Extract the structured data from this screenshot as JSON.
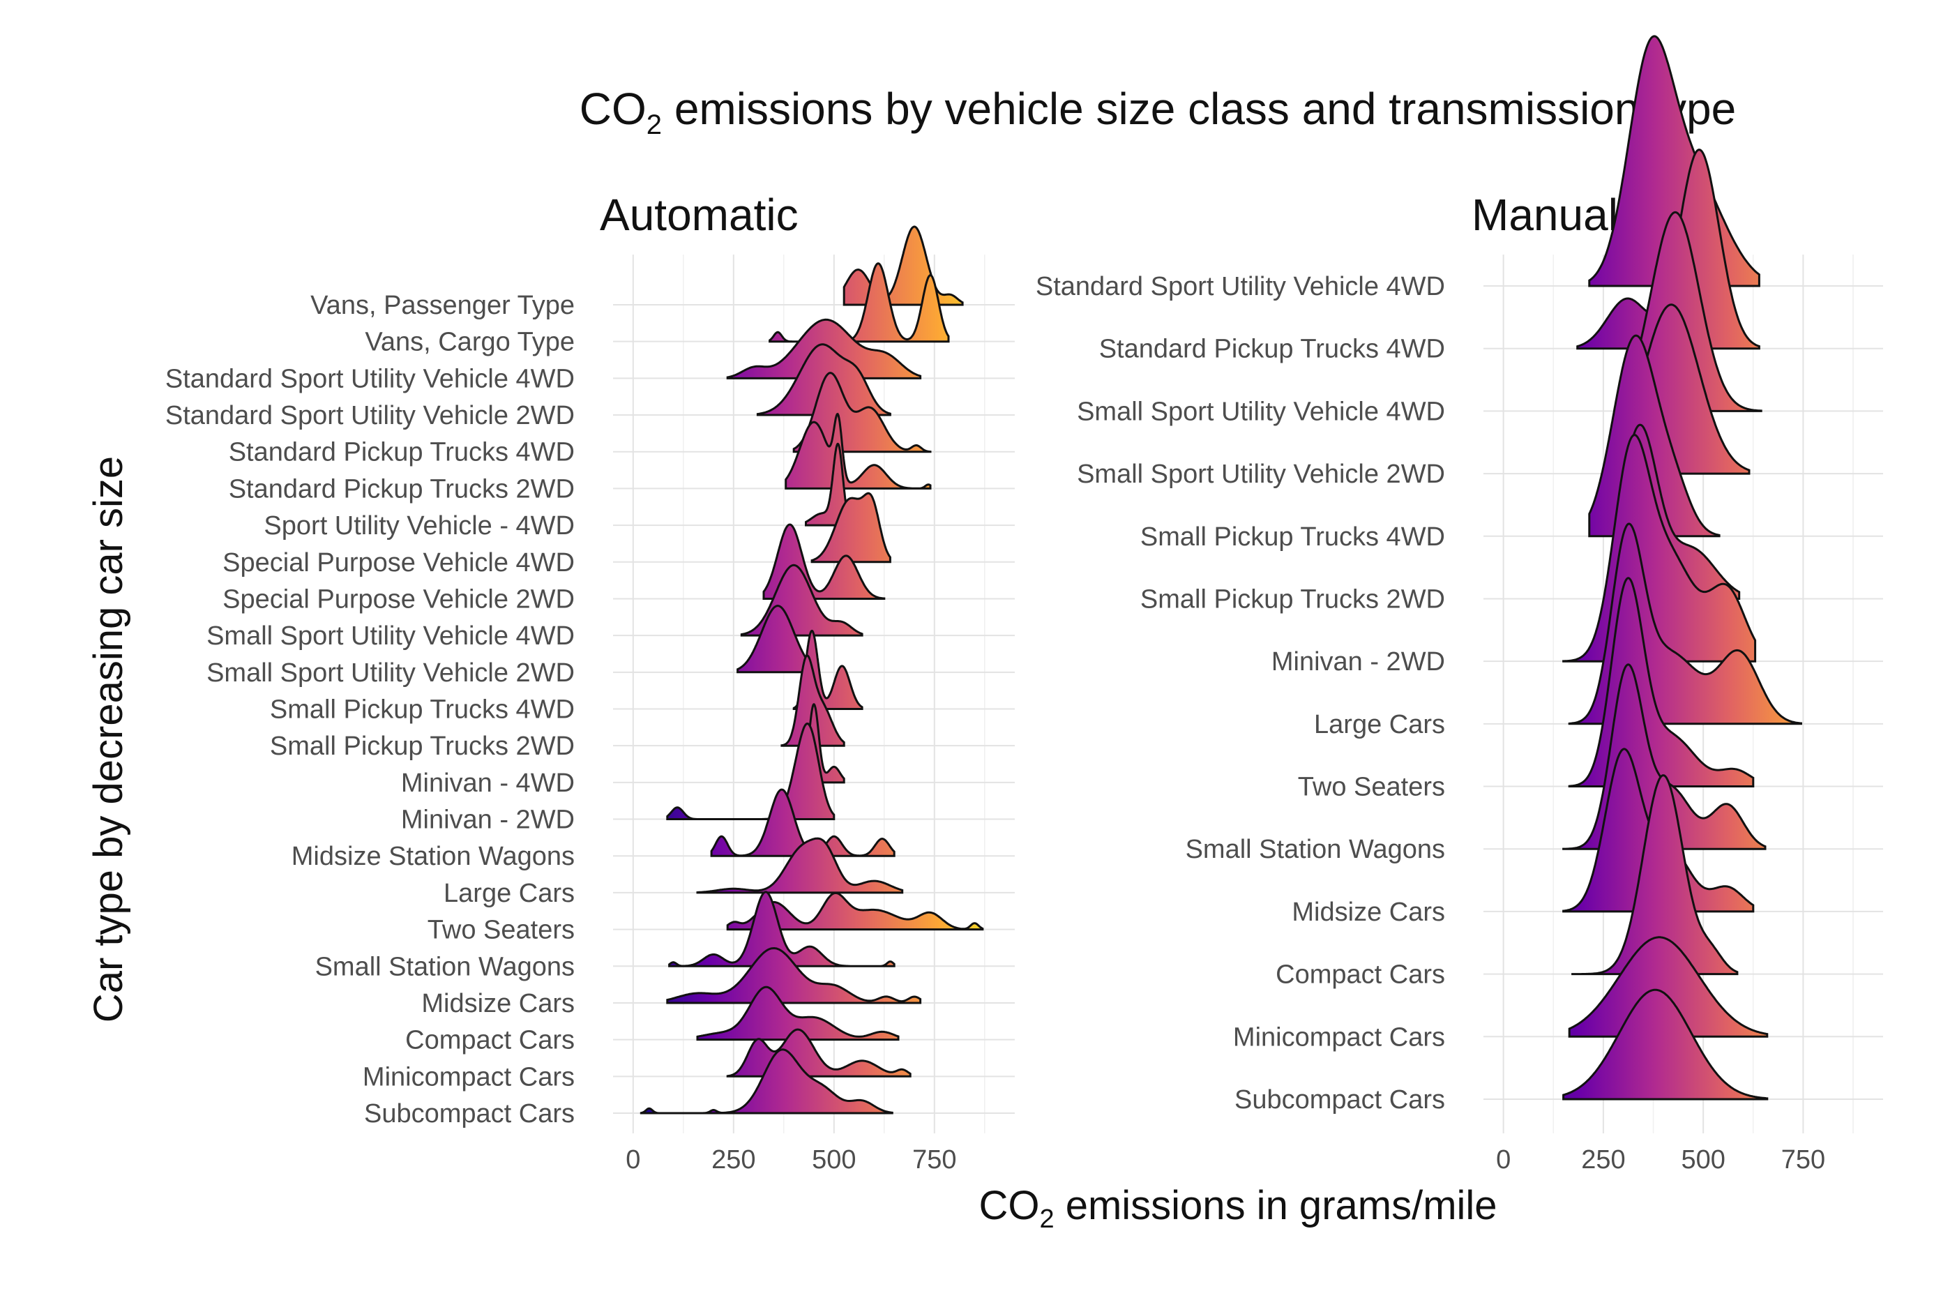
{
  "chart_data": {
    "type": "ridgeline",
    "title": {
      "prefix": "CO",
      "sub": "2",
      "suffix": " emissions by vehicle size class and transmission type"
    },
    "xlabel": {
      "prefix": "CO",
      "sub": "2",
      "suffix": " emissions in grams/mile"
    },
    "ylabel": "Car type by decreasing car size",
    "xlim": [
      -50,
      950
    ],
    "xticks": [
      0,
      250,
      500,
      750
    ],
    "color_scale": {
      "name": "plasma",
      "stops": [
        "#0d0887",
        "#6a00a8",
        "#b12a90",
        "#e16462",
        "#fca636",
        "#f0f921"
      ],
      "range": [
        0,
        950
      ]
    },
    "panels": [
      {
        "name": "Automatic",
        "categories": [
          {
            "label": "Vans, Passenger Type",
            "comps": [
              [
                560,
                30,
                0.45
              ],
              [
                700,
                30,
                1.0
              ],
              [
                790,
                18,
                0.12
              ]
            ],
            "range": [
              525,
              820
            ]
          },
          {
            "label": "Vans, Cargo Type",
            "comps": [
              [
                360,
                10,
                0.12
              ],
              [
                610,
                25,
                1.0
              ],
              [
                740,
                20,
                0.85
              ]
            ],
            "range": [
              340,
              785
            ]
          },
          {
            "label": "Standard Sport Utility Vehicle 4WD",
            "comps": [
              [
                300,
                30,
                0.12
              ],
              [
                480,
                70,
                0.75
              ],
              [
                630,
                40,
                0.25
              ]
            ],
            "range": [
              235,
              715
            ]
          },
          {
            "label": "Standard Sport Utility Vehicle 2WD",
            "comps": [
              [
                470,
                55,
                0.9
              ],
              [
                560,
                30,
                0.35
              ]
            ],
            "range": [
              310,
              640
            ]
          },
          {
            "label": "Standard Pickup Trucks 4WD",
            "comps": [
              [
                490,
                35,
                1.0
              ],
              [
                590,
                35,
                0.55
              ],
              [
                705,
                12,
                0.08
              ]
            ],
            "range": [
              400,
              740
            ]
          },
          {
            "label": "Standard Pickup Trucks 2WD",
            "comps": [
              [
                450,
                35,
                0.85
              ],
              [
                510,
                10,
                0.75
              ],
              [
                600,
                30,
                0.3
              ],
              [
                735,
                8,
                0.05
              ]
            ],
            "range": [
              380,
              740
            ]
          },
          {
            "label": "Sport Utility Vehicle - 4WD",
            "comps": [
              [
                510,
                12,
                1.0
              ],
              [
                470,
                25,
                0.15
              ]
            ],
            "range": [
              430,
              560
            ]
          },
          {
            "label": "Special Purpose Vehicle 4WD",
            "comps": [
              [
                540,
                35,
                0.8
              ],
              [
                595,
                20,
                0.6
              ]
            ],
            "range": [
              445,
              640
            ]
          },
          {
            "label": "Special Purpose Vehicle 2WD",
            "comps": [
              [
                390,
                30,
                0.95
              ],
              [
                530,
                30,
                0.55
              ]
            ],
            "range": [
              325,
              625
            ]
          },
          {
            "label": "Small Sport Utility Vehicle 4WD",
            "comps": [
              [
                400,
                45,
                0.9
              ],
              [
                520,
                25,
                0.15
              ]
            ],
            "range": [
              270,
              570
            ]
          },
          {
            "label": "Small Sport Utility Vehicle 2WD",
            "comps": [
              [
                360,
                40,
                0.85
              ]
            ],
            "range": [
              260,
              460
            ]
          },
          {
            "label": "Small Pickup Trucks 4WD",
            "comps": [
              [
                445,
                15,
                1.0
              ],
              [
                520,
                20,
                0.55
              ]
            ],
            "range": [
              400,
              570
            ]
          },
          {
            "label": "Small Pickup Trucks 2WD",
            "comps": [
              [
                430,
                18,
                1.0
              ],
              [
                470,
                25,
                0.5
              ]
            ],
            "range": [
              370,
              525
            ]
          },
          {
            "label": "Minivan - 4WD",
            "comps": [
              [
                450,
                12,
                1.0
              ],
              [
                500,
                15,
                0.2
              ]
            ],
            "range": [
              410,
              525
            ]
          },
          {
            "label": "Minivan - 2WD",
            "comps": [
              [
                110,
                15,
                0.15
              ],
              [
                440,
                25,
                1.0
              ],
              [
                410,
                25,
                0.4
              ]
            ],
            "range": [
              85,
              500
            ]
          },
          {
            "label": "Midsize Station Wagons",
            "comps": [
              [
                220,
                15,
                0.25
              ],
              [
                370,
                30,
                0.85
              ],
              [
                500,
                20,
                0.25
              ],
              [
                620,
                18,
                0.22
              ]
            ],
            "range": [
              195,
              650
            ]
          },
          {
            "label": "Large Cars",
            "comps": [
              [
                250,
                40,
                0.05
              ],
              [
                420,
                40,
                0.55
              ],
              [
                480,
                30,
                0.45
              ],
              [
                600,
                40,
                0.15
              ]
            ],
            "range": [
              160,
              670
            ]
          },
          {
            "label": "Two Seaters",
            "comps": [
              [
                250,
                15,
                0.08
              ],
              [
                350,
                40,
                0.35
              ],
              [
                500,
                30,
                0.4
              ],
              [
                600,
                60,
                0.25
              ],
              [
                740,
                30,
                0.2
              ],
              [
                850,
                10,
                0.08
              ]
            ],
            "range": [
              235,
              870
            ]
          },
          {
            "label": "Small Station Wagons",
            "comps": [
              [
                100,
                8,
                0.05
              ],
              [
                200,
                25,
                0.15
              ],
              [
                330,
                30,
                0.95
              ],
              [
                440,
                30,
                0.25
              ],
              [
                640,
                8,
                0.06
              ]
            ],
            "range": [
              90,
              650
            ]
          },
          {
            "label": "Midsize Cars",
            "comps": [
              [
                160,
                50,
                0.12
              ],
              [
                350,
                60,
                0.7
              ],
              [
                500,
                40,
                0.2
              ],
              [
                630,
                20,
                0.08
              ],
              [
                700,
                15,
                0.08
              ]
            ],
            "range": [
              85,
              715
            ]
          },
          {
            "label": "Compact Cars",
            "comps": [
              [
                220,
                50,
                0.08
              ],
              [
                330,
                40,
                0.65
              ],
              [
                450,
                50,
                0.28
              ],
              [
                620,
                30,
                0.1
              ]
            ],
            "range": [
              160,
              660
            ]
          },
          {
            "label": "Minicompact Cars",
            "comps": [
              [
                310,
                25,
                0.45
              ],
              [
                410,
                40,
                0.6
              ],
              [
                570,
                40,
                0.2
              ],
              [
                670,
                15,
                0.08
              ]
            ],
            "range": [
              235,
              690
            ]
          },
          {
            "label": "Subcompact Cars",
            "comps": [
              [
                40,
                8,
                0.06
              ],
              [
                200,
                8,
                0.04
              ],
              [
                370,
                45,
                0.8
              ],
              [
                470,
                40,
                0.3
              ],
              [
                570,
                30,
                0.15
              ]
            ],
            "range": [
              20,
              645
            ]
          }
        ]
      },
      {
        "name": "Manual",
        "categories": [
          {
            "label": "Standard Sport Utility Vehicle 4WD",
            "comps": [
              [
                365,
                55,
                1.0
              ],
              [
                470,
                80,
                0.55
              ]
            ],
            "range": [
              215,
              640
            ]
          },
          {
            "label": "Standard Pickup Trucks 4WD",
            "comps": [
              [
                490,
                50,
                1.0
              ],
              [
                310,
                50,
                0.25
              ]
            ],
            "range": [
              185,
              640
            ]
          },
          {
            "label": "Small Sport Utility Vehicle 4WD",
            "comps": [
              [
                430,
                60,
                1.0
              ]
            ],
            "range": [
              335,
              645
            ]
          },
          {
            "label": "Small Sport Utility Vehicle 2WD",
            "comps": [
              [
                420,
                70,
                0.85
              ]
            ],
            "range": [
              275,
              615
            ]
          },
          {
            "label": "Small Pickup Trucks 4WD",
            "comps": [
              [
                330,
                55,
                1.0
              ],
              [
                430,
                40,
                0.2
              ]
            ],
            "range": [
              215,
              540
            ]
          },
          {
            "label": "Small Pickup Trucks 2WD",
            "comps": [
              [
                340,
                45,
                0.85
              ],
              [
                470,
                60,
                0.25
              ]
            ],
            "range": [
              275,
              590
            ]
          },
          {
            "label": "Minivan - 2WD",
            "comps": [
              [
                320,
                45,
                1.0
              ],
              [
                420,
                60,
                0.5
              ],
              [
                560,
                45,
                0.35
              ]
            ],
            "range": [
              150,
              630
            ]
          },
          {
            "label": "Large Cars",
            "comps": [
              [
                310,
                40,
                0.9
              ],
              [
                420,
                70,
                0.35
              ],
              [
                590,
                50,
                0.35
              ]
            ],
            "range": [
              165,
              745
            ]
          },
          {
            "label": "Two Seaters",
            "comps": [
              [
                310,
                40,
                1.0
              ],
              [
                420,
                60,
                0.25
              ],
              [
                580,
                40,
                0.08
              ]
            ],
            "range": [
              165,
              625
            ]
          },
          {
            "label": "Small Station Wagons",
            "comps": [
              [
                310,
                40,
                0.9
              ],
              [
                420,
                50,
                0.3
              ],
              [
                560,
                40,
                0.22
              ]
            ],
            "range": [
              150,
              655
            ]
          },
          {
            "label": "Midsize Cars",
            "comps": [
              [
                300,
                45,
                0.8
              ],
              [
                420,
                50,
                0.3
              ],
              [
                560,
                40,
                0.12
              ]
            ],
            "range": [
              150,
              625
            ]
          },
          {
            "label": "Compact Cars",
            "comps": [
              [
                400,
                50,
                1.0
              ],
              [
                520,
                30,
                0.1
              ]
            ],
            "range": [
              170,
              585
            ]
          },
          {
            "label": "Minicompact Cars",
            "comps": [
              [
                390,
                100,
                0.5
              ]
            ],
            "range": [
              165,
              660
            ]
          },
          {
            "label": "Subcompact Cars",
            "comps": [
              [
                380,
                90,
                0.55
              ]
            ],
            "range": [
              150,
              660
            ]
          }
        ]
      }
    ]
  }
}
